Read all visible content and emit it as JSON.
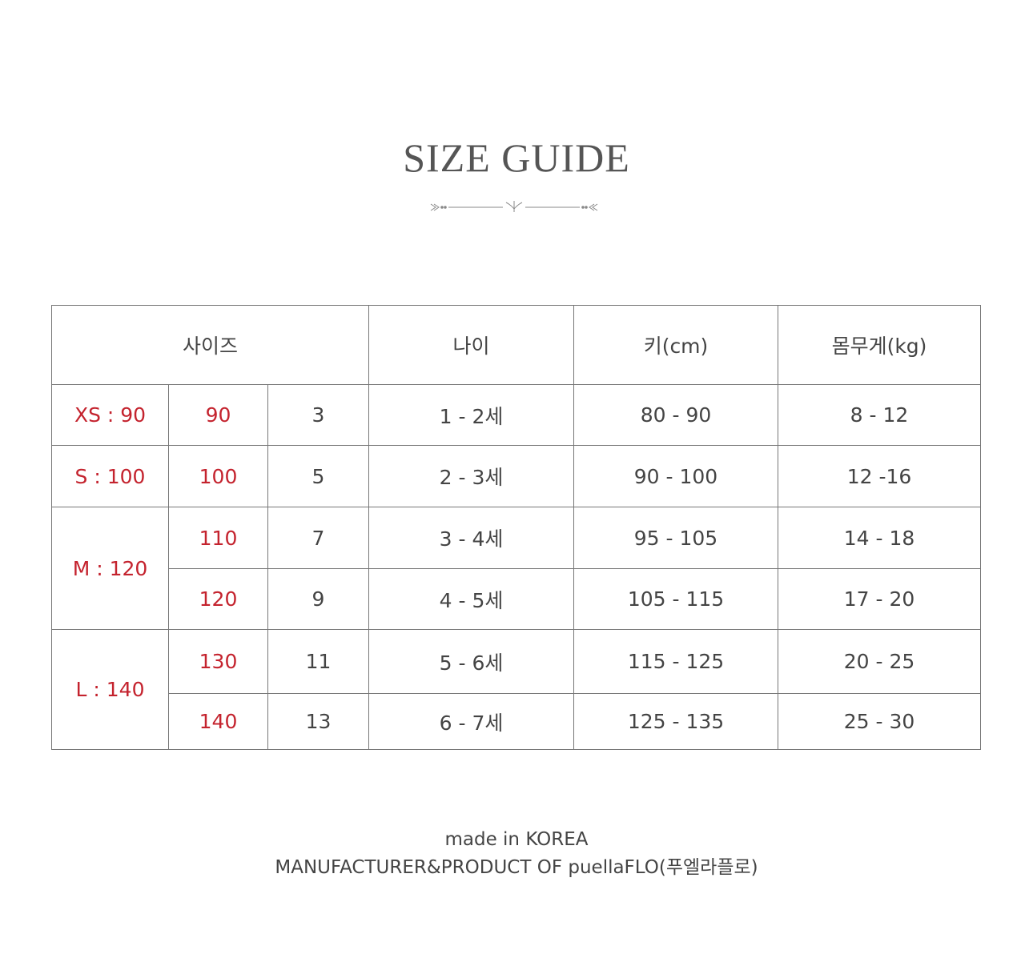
{
  "title": "SIZE GUIDE",
  "ornament_icon": "decorative-divider",
  "colors": {
    "accent_red": "#c4232e",
    "text": "#444444",
    "border": "#777777"
  },
  "table": {
    "headers": [
      "사이즈",
      "나이",
      "키(cm)",
      "몸무게(kg)"
    ],
    "groups": [
      "XS : 90",
      "S : 100",
      "M : 120",
      "L : 140"
    ],
    "rows": [
      {
        "size": "90",
        "num": "3",
        "age": "1 - 2세",
        "height": "80 - 90",
        "weight": "8 - 12"
      },
      {
        "size": "100",
        "num": "5",
        "age": "2 - 3세",
        "height": "90 - 100",
        "weight": "12 -16"
      },
      {
        "size": "110",
        "num": "7",
        "age": "3 - 4세",
        "height": "95 - 105",
        "weight": "14 - 18"
      },
      {
        "size": "120",
        "num": "9",
        "age": "4 - 5세",
        "height": "105 - 115",
        "weight": "17 - 20"
      },
      {
        "size": "130",
        "num": "11",
        "age": "5 - 6세",
        "height": "115 - 125",
        "weight": "20 - 25"
      },
      {
        "size": "140",
        "num": "13",
        "age": "6 - 7세",
        "height": "125 - 135",
        "weight": "25 - 30"
      }
    ]
  },
  "footer": {
    "line1": "made in KOREA",
    "line2": "MANUFACTURER&PRODUCT OF puellaFLO(푸엘라플로)"
  }
}
